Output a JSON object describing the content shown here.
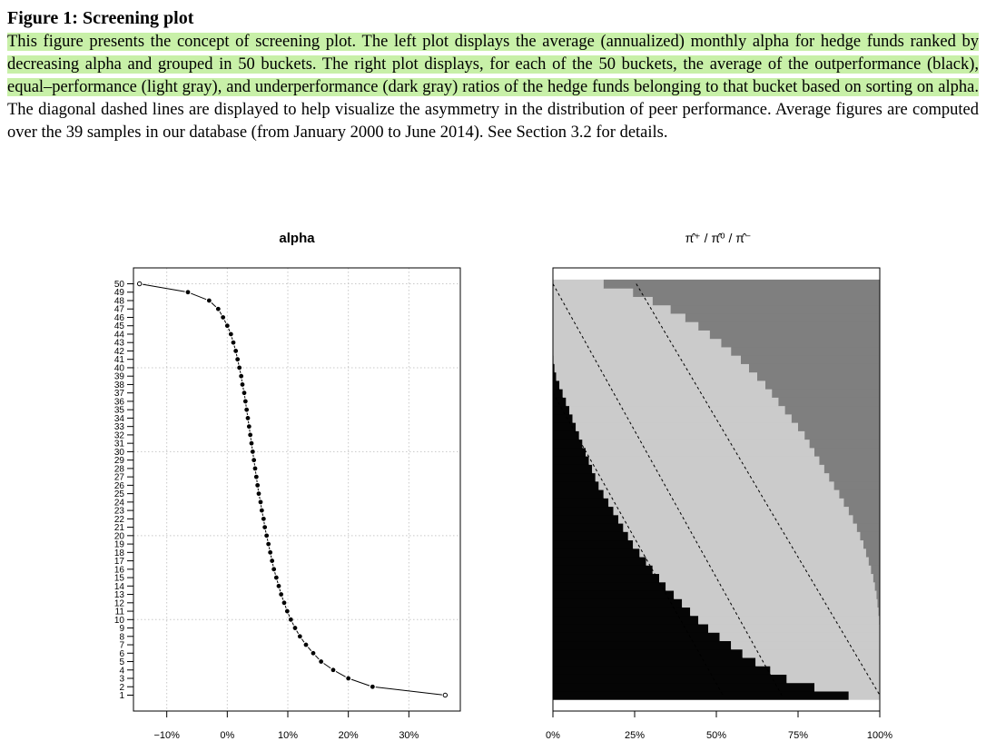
{
  "figure": {
    "label": "Figure 1:",
    "title": "Screening plot",
    "caption_highlighted": "This figure presents the concept of screening plot. The left plot displays the average (annualized) monthly alpha for hedge funds ranked by decreasing alpha and grouped in 50 buckets. The right plot displays, for each of the 50 buckets, the average of the outperformance (black), equal–performance (light gray), and underperformance (dark gray) ratios of the hedge funds belonging to that bucket based on sorting on alpha.",
    "caption_rest": " The diagonal dashed lines are displayed to help visualize the asymmetry in the distribution of peer performance. Average figures are computed over the 39 samples in our database (from January 2000 to June 2014). See Section 3.2 for details."
  },
  "colors": {
    "highlight": "#c8f0a8",
    "outperformance": "#050505",
    "equal_performance": "#cbcbcb",
    "underperformance": "#7f7f7f"
  },
  "chart_data": [
    {
      "type": "scatter",
      "title": "alpha",
      "xlabel": "",
      "ylabel": "",
      "x_tick_labels": [
        "−10%",
        "0%",
        "10%",
        "20%",
        "30%"
      ],
      "x_ticks": [
        -10,
        0,
        10,
        20,
        30
      ],
      "xlim": [
        -15.5,
        38.5
      ],
      "ylim": [
        1,
        50
      ],
      "grid": true,
      "y_tick_labels": [
        "1",
        "2",
        "3",
        "4",
        "5",
        "6",
        "7",
        "8",
        "9",
        "10",
        "11",
        "12",
        "13",
        "14",
        "15",
        "16",
        "17",
        "18",
        "19",
        "20",
        "21",
        "22",
        "23",
        "24",
        "25",
        "26",
        "27",
        "28",
        "29",
        "30",
        "31",
        "32",
        "33",
        "34",
        "35",
        "36",
        "37",
        "38",
        "39",
        "40",
        "41",
        "42",
        "43",
        "44",
        "45",
        "46",
        "47",
        "48",
        "49",
        "50"
      ],
      "bucket": [
        1,
        2,
        3,
        4,
        5,
        6,
        7,
        8,
        9,
        10,
        11,
        12,
        13,
        14,
        15,
        16,
        17,
        18,
        19,
        20,
        21,
        22,
        23,
        24,
        25,
        26,
        27,
        28,
        29,
        30,
        31,
        32,
        33,
        34,
        35,
        36,
        37,
        38,
        39,
        40,
        41,
        42,
        43,
        44,
        45,
        46,
        47,
        48,
        49,
        50
      ],
      "alpha_pct": [
        36.0,
        24.0,
        20.0,
        17.5,
        15.5,
        14.2,
        13.0,
        12.0,
        11.2,
        10.5,
        9.9,
        9.4,
        8.9,
        8.5,
        8.1,
        7.7,
        7.4,
        7.1,
        6.8,
        6.5,
        6.2,
        6.0,
        5.7,
        5.5,
        5.2,
        5.0,
        4.8,
        4.6,
        4.4,
        4.2,
        4.0,
        3.8,
        3.6,
        3.4,
        3.2,
        3.0,
        2.8,
        2.5,
        2.3,
        2.0,
        1.7,
        1.4,
        1.0,
        0.6,
        0.0,
        -0.7,
        -1.5,
        -3.0,
        -6.5,
        -14.5
      ]
    },
    {
      "type": "area",
      "title": "π̂⁺ / π̂⁰ / π̂⁻",
      "series_names": [
        "outperformance",
        "equal-performance",
        "underperformance"
      ],
      "x_tick_labels": [
        "0%",
        "25%",
        "50%",
        "75%",
        "100%"
      ],
      "x_ticks": [
        0,
        25,
        50,
        75,
        100
      ],
      "xlim": [
        0,
        100
      ],
      "ylim": [
        1,
        50
      ],
      "bucket": [
        1,
        2,
        3,
        4,
        5,
        6,
        7,
        8,
        9,
        10,
        11,
        12,
        13,
        14,
        15,
        16,
        17,
        18,
        19,
        20,
        21,
        22,
        23,
        24,
        25,
        26,
        27,
        28,
        29,
        30,
        31,
        32,
        33,
        34,
        35,
        36,
        37,
        38,
        39,
        40,
        41,
        42,
        43,
        44,
        45,
        46,
        47,
        48,
        49,
        50
      ],
      "outperformance_pct": [
        90.5,
        80.0,
        71.5,
        66.5,
        62.0,
        58.0,
        54.5,
        51.0,
        47.5,
        44.5,
        42.0,
        39.5,
        37.0,
        34.5,
        32.5,
        30.5,
        28.5,
        26.5,
        24.5,
        23.0,
        21.5,
        20.0,
        18.5,
        17.0,
        15.5,
        14.0,
        13.0,
        12.0,
        11.0,
        10.0,
        9.0,
        8.0,
        7.0,
        6.0,
        5.0,
        4.0,
        3.0,
        2.0,
        1.0,
        0.5,
        0.2,
        0,
        0,
        0,
        0,
        0,
        0,
        0,
        0,
        0
      ],
      "cumulative_outperformance_plus_equal_pct": [
        100,
        100,
        100,
        100,
        100,
        100,
        100,
        100,
        100,
        99.8,
        99.6,
        99.3,
        99.0,
        98.5,
        98.0,
        97.3,
        96.6,
        95.8,
        95.0,
        94.0,
        93.0,
        91.8,
        90.5,
        89.0,
        87.6,
        86.0,
        84.5,
        83.0,
        81.5,
        80.0,
        78.5,
        77.0,
        75.0,
        73.0,
        71.0,
        69.0,
        67.0,
        65.0,
        62.5,
        60.0,
        57.5,
        54.5,
        51.5,
        48.0,
        44.5,
        40.5,
        36.0,
        30.5,
        24.5,
        15.5
      ],
      "dashed_lines": [
        {
          "from": [
            0,
            50
          ],
          "to": [
            70,
            1
          ]
        },
        {
          "from": [
            0,
            37
          ],
          "to": [
            52,
            1
          ]
        },
        {
          "from": [
            25.5,
            50
          ],
          "to": [
            100,
            1
          ]
        }
      ]
    }
  ]
}
